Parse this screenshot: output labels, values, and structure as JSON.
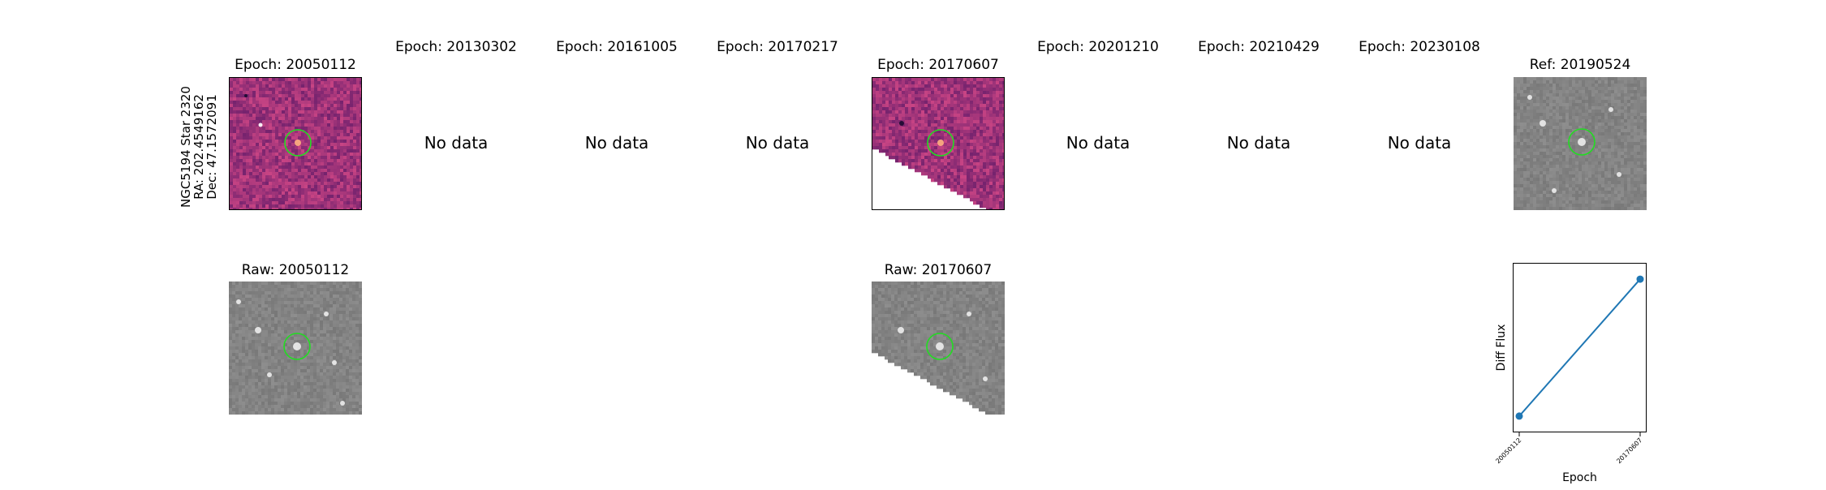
{
  "star": {
    "line1": "NGC5194 Star 2320",
    "line2": "RA: 202.4549162",
    "line3": "Dec: 47.1572091"
  },
  "top_row": [
    {
      "label": "Epoch: 20050112",
      "has_data": true,
      "kind": "diff"
    },
    {
      "label": "Epoch: 20130302",
      "has_data": false,
      "message": "No data"
    },
    {
      "label": "Epoch: 20161005",
      "has_data": false,
      "message": "No data"
    },
    {
      "label": "Epoch: 20170217",
      "has_data": false,
      "message": "No data"
    },
    {
      "label": "Epoch: 20170607",
      "has_data": true,
      "kind": "diff"
    },
    {
      "label": "Epoch: 20201210",
      "has_data": false,
      "message": "No data"
    },
    {
      "label": "Epoch: 20210429",
      "has_data": false,
      "message": "No data"
    },
    {
      "label": "Epoch: 20230108",
      "has_data": false,
      "message": "No data"
    },
    {
      "label": "Ref: 20190524",
      "has_data": true,
      "kind": "ref"
    }
  ],
  "bottom_row": [
    {
      "label": "Raw: 20050112"
    },
    {
      "label": "Raw: 20170607"
    }
  ],
  "colors": {
    "circle": "#22dd22",
    "line": "#1f77b4",
    "diff_base": "#7a2d73",
    "raw_base": "#8a8a8a"
  },
  "chart_data": {
    "type": "line",
    "x": [
      "20050112",
      "20170607"
    ],
    "series": [
      {
        "values": [
          0.08,
          0.92
        ]
      }
    ],
    "xlabel": "Epoch",
    "ylabel": "Diff Flux",
    "ylim": [
      0,
      1
    ],
    "grid": false
  }
}
